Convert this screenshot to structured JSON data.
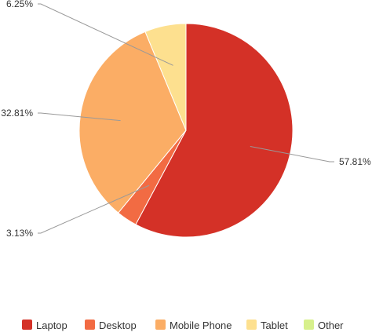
{
  "chart_data": {
    "type": "pie",
    "title": "",
    "legend_position": "bottom",
    "slices": [
      {
        "name": "Laptop",
        "value": 57.81,
        "label": "57.81%",
        "color": "#d43127"
      },
      {
        "name": "Desktop",
        "value": 3.13,
        "label": "3.13%",
        "color": "#f26b43"
      },
      {
        "name": "Mobile Phone",
        "value": 32.81,
        "label": "32.81%",
        "color": "#fbad65"
      },
      {
        "name": "Tablet",
        "value": 6.25,
        "label": "6.25%",
        "color": "#fde08f"
      },
      {
        "name": "Other",
        "value": 0,
        "label": "",
        "color": "#d7f08c"
      }
    ]
  }
}
